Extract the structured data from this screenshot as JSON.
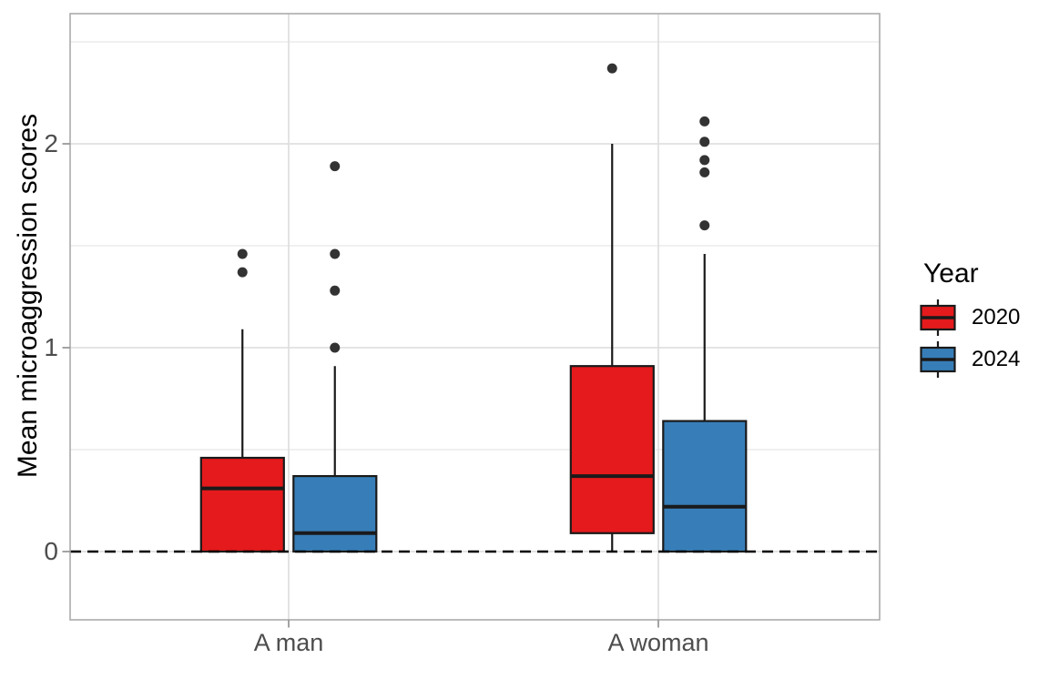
{
  "chart_data": {
    "type": "boxplot",
    "title": "",
    "xlabel": "",
    "ylabel": "Mean microaggression scores",
    "categories": [
      "A man",
      "A woman"
    ],
    "y_ticks": [
      "0",
      "1",
      "2"
    ],
    "y_tick_values": [
      0,
      1,
      2
    ],
    "y_minor_tick_values": [
      0.5,
      1.5,
      2.5
    ],
    "ylim": [
      -0.335,
      2.64
    ],
    "grid": "major+minor, light gray on white panel",
    "legend": {
      "title": "Year",
      "position": "right",
      "entries": [
        {
          "label": "2020",
          "color": "#E41A1C"
        },
        {
          "label": "2024",
          "color": "#377EB8"
        }
      ]
    },
    "reference_line": {
      "y": 0,
      "linetype": "dashed",
      "color": "#000000"
    },
    "style_colors": {
      "box_outline": "#1A1A1A",
      "outlier_point": "#333333",
      "panel_border": "#ABABAB",
      "grid_major": "#DCDCDC",
      "grid_minor": "#ECECEC",
      "axis_tick": "#999999",
      "axis_text": "#4D4D4D",
      "title_text": "#000000"
    },
    "series": [
      {
        "name": "2020",
        "color": "#E41A1C",
        "boxes": [
          {
            "category": "A man",
            "whisker_low": 0,
            "q1": 0,
            "median": 0.31,
            "q3": 0.46,
            "whisker_high": 1.09,
            "outliers": [
              1.37,
              1.46
            ]
          },
          {
            "category": "A woman",
            "whisker_low": 0,
            "q1": 0.09,
            "median": 0.37,
            "q3": 0.91,
            "whisker_high": 2.0,
            "outliers": [
              2.37
            ]
          }
        ]
      },
      {
        "name": "2024",
        "color": "#377EB8",
        "boxes": [
          {
            "category": "A man",
            "whisker_low": 0,
            "q1": 0,
            "median": 0.09,
            "q3": 0.37,
            "whisker_high": 0.91,
            "outliers": [
              1.0,
              1.28,
              1.46,
              1.89
            ]
          },
          {
            "category": "A woman",
            "whisker_low": 0,
            "q1": 0,
            "median": 0.22,
            "q3": 0.64,
            "whisker_high": 1.46,
            "outliers": [
              1.6,
              1.86,
              1.92,
              2.01,
              2.11
            ]
          }
        ]
      }
    ]
  }
}
